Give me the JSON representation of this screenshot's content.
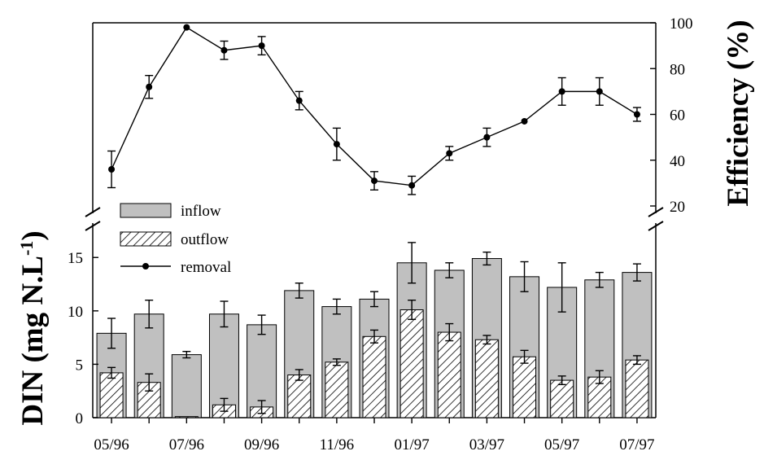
{
  "chart_data": {
    "type": "bar",
    "categories": [
      "05/96",
      "06/96",
      "07/96",
      "08/96",
      "09/96",
      "10/96",
      "11/96",
      "12/96",
      "01/97",
      "02/97",
      "03/97",
      "04/97",
      "05/97",
      "06/97",
      "07/97"
    ],
    "x_tick_labels": [
      "05/96",
      "07/96",
      "09/96",
      "11/96",
      "01/97",
      "03/97",
      "05/97",
      "07/97"
    ],
    "series": [
      {
        "name": "inflow",
        "kind": "bar",
        "axis": "left",
        "fill": "gray",
        "values": [
          7.9,
          9.7,
          5.9,
          9.7,
          8.7,
          11.9,
          10.4,
          11.1,
          14.5,
          13.8,
          14.9,
          13.2,
          12.2,
          12.9,
          13.6
        ],
        "errors": [
          1.4,
          1.3,
          0.3,
          1.2,
          0.9,
          0.7,
          0.7,
          0.7,
          1.9,
          0.7,
          0.6,
          1.4,
          2.3,
          0.7,
          0.8
        ]
      },
      {
        "name": "outflow",
        "kind": "bar",
        "axis": "left",
        "fill": "hatched",
        "values": [
          4.2,
          3.3,
          0.1,
          1.2,
          1.0,
          4.0,
          5.2,
          7.6,
          10.1,
          8.0,
          7.3,
          5.7,
          3.5,
          3.8,
          5.4
        ],
        "errors": [
          0.5,
          0.8,
          0.0,
          0.6,
          0.6,
          0.5,
          0.3,
          0.6,
          0.9,
          0.8,
          0.4,
          0.6,
          0.4,
          0.6,
          0.4
        ]
      },
      {
        "name": "removal",
        "kind": "line",
        "axis": "right",
        "values": [
          36,
          72,
          98,
          88,
          90,
          66,
          47,
          31,
          29,
          43,
          50,
          57,
          70,
          70,
          60
        ],
        "errors": [
          8,
          5,
          0,
          4,
          4,
          4,
          7,
          4,
          4,
          3,
          4,
          0,
          6,
          6,
          3
        ]
      }
    ],
    "ylabel": "DIN (mg N.L⁻¹)",
    "ylabel_main": "DIN (mg N.L",
    "ylabel_sup": "-1",
    "ylabel_close": ")",
    "y_ticks": [
      "0",
      "5",
      "10",
      "15"
    ],
    "ylim": [
      0,
      17
    ],
    "y2label": "Efficiency (%)",
    "y2_ticks": [
      "20",
      "40",
      "60",
      "80",
      "100"
    ],
    "y2lim": [
      20,
      100
    ],
    "legend": {
      "position": "upper-left",
      "entries": [
        "inflow",
        "outflow",
        "removal"
      ]
    },
    "grid": false
  },
  "colors": {
    "bar_fill": "#c0c0c0",
    "stroke": "#000000",
    "background": "#ffffff"
  }
}
